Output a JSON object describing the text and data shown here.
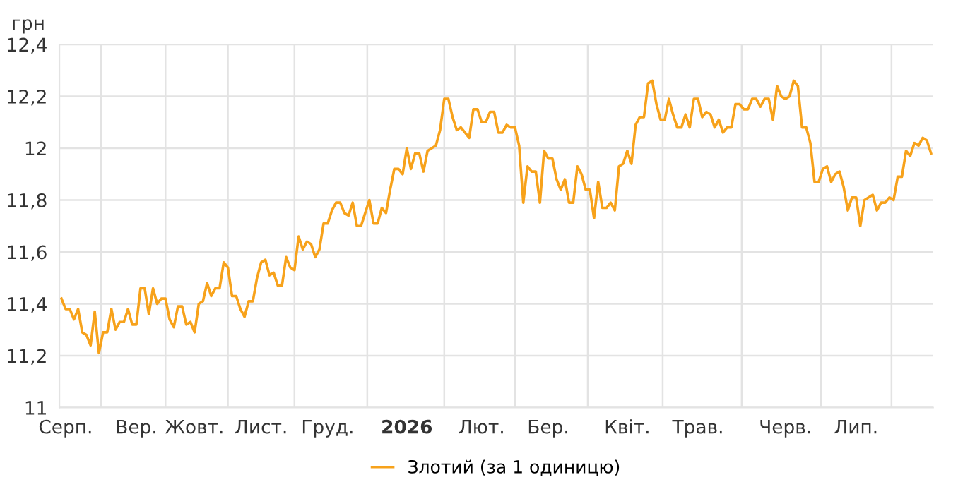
{
  "chart_data": {
    "type": "line",
    "ylabel": "грн",
    "categories": [
      null,
      "Серп.",
      null,
      null,
      null,
      null,
      null,
      null,
      null,
      null,
      null,
      null,
      null,
      null,
      null,
      null,
      null,
      null,
      "Вер.",
      null,
      null,
      null,
      null,
      null,
      null,
      null,
      null,
      null,
      null,
      null,
      null,
      null,
      "Жовт.",
      null,
      null,
      null,
      null,
      null,
      null,
      null,
      null,
      null,
      null,
      null,
      null,
      null,
      null,
      null,
      "Лист.",
      null,
      null,
      null,
      null,
      null,
      null,
      null,
      null,
      null,
      null,
      null,
      null,
      null,
      null,
      null,
      "Груд.",
      null,
      null,
      null,
      null,
      null,
      null,
      null,
      null,
      null,
      null,
      null,
      null,
      null,
      null,
      null,
      null,
      null,
      null,
      "2026",
      null,
      null,
      null,
      null,
      null,
      null,
      null,
      null,
      null,
      null,
      null,
      null,
      null,
      null,
      null,
      null,
      null,
      "Лют.",
      null,
      null,
      null,
      null,
      null,
      null,
      null,
      null,
      null,
      null,
      null,
      null,
      null,
      null,
      null,
      "Бер.",
      null,
      null,
      null,
      null,
      null,
      null,
      null,
      null,
      null,
      null,
      null,
      null,
      null,
      null,
      null,
      null,
      null,
      null,
      "Квіт.",
      null,
      null,
      null,
      null,
      null,
      null,
      null,
      null,
      null,
      null,
      null,
      null,
      null,
      null,
      null,
      null,
      "Трав.",
      null,
      null,
      null,
      null,
      null,
      null,
      null,
      null,
      null,
      null,
      null,
      null,
      null,
      null,
      null,
      null,
      null,
      null,
      null,
      null,
      "Черв.",
      null,
      null,
      null,
      null,
      null,
      null,
      null,
      null,
      null,
      null,
      null,
      null,
      null,
      null,
      null,
      null,
      "Лип.",
      null,
      null,
      null,
      null,
      null,
      null,
      null,
      null,
      null,
      null,
      null,
      null,
      null,
      null,
      null,
      null,
      null,
      null
    ],
    "ylim": [
      11,
      12.4
    ],
    "yticks": [
      11,
      {
        "value": 11.2,
        "label": "11,2"
      },
      {
        "value": 11.4,
        "label": "11,4"
      },
      {
        "value": 11.6,
        "label": "11,6"
      },
      {
        "value": 11.8,
        "label": "11,8"
      },
      12,
      {
        "value": 12.2,
        "label": "12,2"
      },
      {
        "value": 12.4,
        "label": "12,4"
      }
    ],
    "grid": true,
    "legend": "bottom",
    "marker": "none",
    "line_style": "solid",
    "series": [
      {
        "name": "Злотий (за 1 одиницю)",
        "color": "#f7a21b",
        "values": [
          11.42,
          11.38,
          11.38,
          11.34,
          11.38,
          11.29,
          11.28,
          11.24,
          11.37,
          11.21,
          11.29,
          11.29,
          11.38,
          11.3,
          11.33,
          11.33,
          11.38,
          11.32,
          11.32,
          11.46,
          11.46,
          11.36,
          11.46,
          11.4,
          11.42,
          11.42,
          11.34,
          11.31,
          11.39,
          11.39,
          11.32,
          11.33,
          11.29,
          11.4,
          11.41,
          11.48,
          11.43,
          11.46,
          11.46,
          11.56,
          11.54,
          11.43,
          11.43,
          11.38,
          11.35,
          11.41,
          11.41,
          11.5,
          11.56,
          11.57,
          11.51,
          11.52,
          11.47,
          11.47,
          11.58,
          11.54,
          11.53,
          11.66,
          11.61,
          11.64,
          11.63,
          11.58,
          11.61,
          11.71,
          11.71,
          11.76,
          11.79,
          11.79,
          11.75,
          11.74,
          11.79,
          11.7,
          11.7,
          11.75,
          11.8,
          11.71,
          11.71,
          11.77,
          11.75,
          11.84,
          11.92,
          11.92,
          11.9,
          12.0,
          11.92,
          11.98,
          11.98,
          11.91,
          11.99,
          12.0,
          12.01,
          12.07,
          12.19,
          12.19,
          12.12,
          12.07,
          12.08,
          12.06,
          12.04,
          12.15,
          12.15,
          12.1,
          12.1,
          12.14,
          12.14,
          12.06,
          12.06,
          12.09,
          12.08,
          12.08,
          12.01,
          11.79,
          11.93,
          11.91,
          11.91,
          11.79,
          11.99,
          11.96,
          11.96,
          11.88,
          11.84,
          11.88,
          11.79,
          11.79,
          11.93,
          11.9,
          11.84,
          11.84,
          11.73,
          11.87,
          11.77,
          11.77,
          11.79,
          11.76,
          11.93,
          11.94,
          11.99,
          11.94,
          12.09,
          12.12,
          12.12,
          12.25,
          12.26,
          12.17,
          12.11,
          12.11,
          12.19,
          12.13,
          12.08,
          12.08,
          12.13,
          12.08,
          12.19,
          12.19,
          12.12,
          12.14,
          12.13,
          12.08,
          12.11,
          12.06,
          12.08,
          12.08,
          12.17,
          12.17,
          12.15,
          12.15,
          12.19,
          12.19,
          12.16,
          12.19,
          12.19,
          12.11,
          12.24,
          12.2,
          12.19,
          12.2,
          12.26,
          12.24,
          12.08,
          12.08,
          12.02,
          11.87,
          11.87,
          11.92,
          11.93,
          11.87,
          11.9,
          11.91,
          11.85,
          11.76,
          11.81,
          11.81,
          11.7,
          11.8,
          11.81,
          11.82,
          11.76,
          11.79,
          11.79,
          11.81,
          11.8,
          11.89,
          11.89,
          11.99,
          11.97,
          12.02,
          12.01,
          12.04,
          12.03,
          11.98
        ]
      }
    ]
  }
}
